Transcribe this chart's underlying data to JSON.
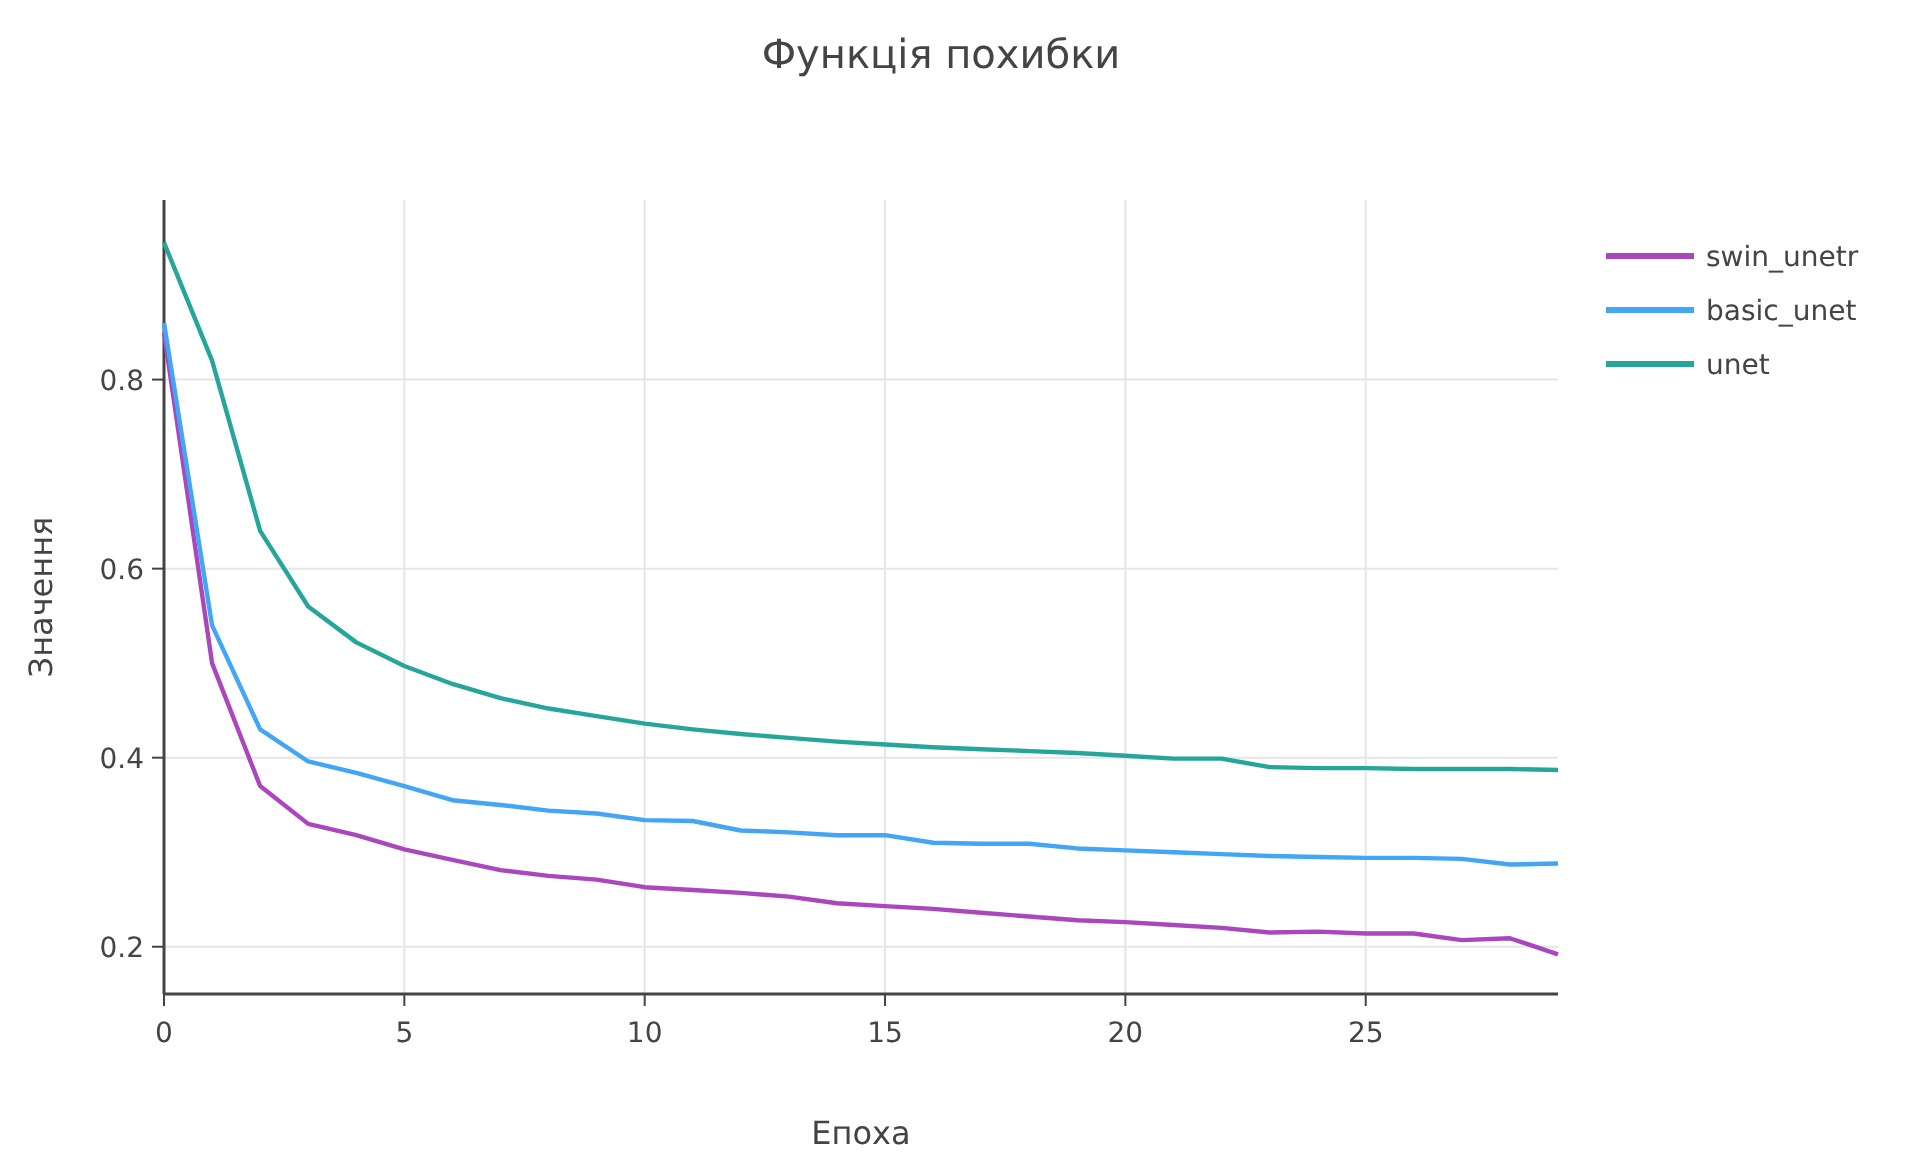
{
  "chart_data": {
    "type": "line",
    "title": "Функція похибки",
    "xlabel": "Епоха",
    "ylabel": "Значення",
    "x": [
      0,
      1,
      2,
      3,
      4,
      5,
      6,
      7,
      8,
      9,
      10,
      11,
      12,
      13,
      14,
      15,
      16,
      17,
      18,
      19,
      20,
      21,
      22,
      23,
      24,
      25,
      26,
      27,
      28,
      29
    ],
    "series": [
      {
        "name": "swin_unetr",
        "color": "#ab47bc",
        "values": [
          0.85,
          0.5,
          0.37,
          0.33,
          0.318,
          0.303,
          0.292,
          0.281,
          0.275,
          0.271,
          0.263,
          0.26,
          0.257,
          0.253,
          0.246,
          0.243,
          0.24,
          0.236,
          0.232,
          0.228,
          0.226,
          0.223,
          0.22,
          0.215,
          0.216,
          0.214,
          0.214,
          0.207,
          0.209,
          0.192
        ]
      },
      {
        "name": "basic_unet",
        "color": "#42a5f5",
        "values": [
          0.86,
          0.54,
          0.43,
          0.396,
          0.384,
          0.37,
          0.355,
          0.35,
          0.344,
          0.341,
          0.334,
          0.333,
          0.323,
          0.321,
          0.318,
          0.318,
          0.31,
          0.309,
          0.309,
          0.304,
          0.302,
          0.3,
          0.298,
          0.296,
          0.295,
          0.294,
          0.294,
          0.293,
          0.287,
          0.288
        ]
      },
      {
        "name": "unet",
        "color": "#26a69a",
        "values": [
          0.945,
          0.82,
          0.64,
          0.56,
          0.522,
          0.497,
          0.478,
          0.463,
          0.452,
          0.444,
          0.436,
          0.43,
          0.425,
          0.421,
          0.417,
          0.414,
          0.411,
          0.409,
          0.407,
          0.405,
          0.402,
          0.399,
          0.399,
          0.39,
          0.389,
          0.389,
          0.388,
          0.388,
          0.388,
          0.387
        ]
      }
    ],
    "xlim": [
      0,
      29
    ],
    "xticks": [
      0,
      5,
      10,
      15,
      20,
      25
    ],
    "ylim": [
      0.15,
      0.99
    ],
    "yticks": [
      0.2,
      0.4,
      0.6,
      0.8
    ],
    "grid": true,
    "legend": "top right",
    "marker": "none",
    "line_style": "solid"
  }
}
